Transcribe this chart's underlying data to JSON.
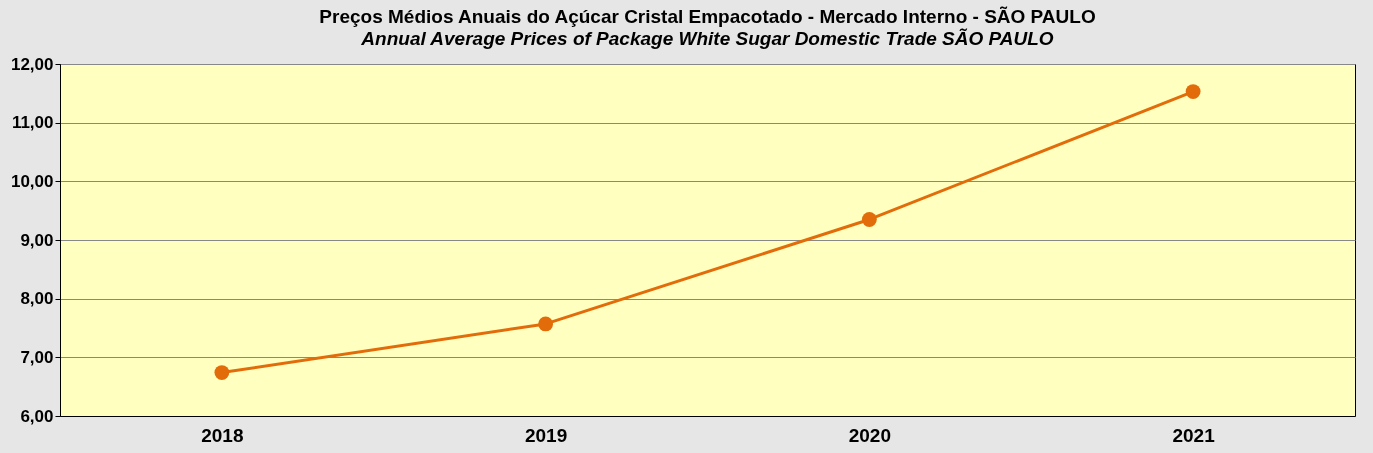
{
  "chart_data": {
    "type": "line",
    "title": "Preços Médios Anuais do Açúcar Cristal Empacotado - Mercado Interno - SÃO PAULO",
    "subtitle": "Annual Average Prices of Package White Sugar  Domestic Trade  SÃO PAULO",
    "categories": [
      "2018",
      "2019",
      "2020",
      "2021"
    ],
    "series": [
      {
        "color": "#e36c0a",
        "values": [
          6.74,
          7.57,
          9.35,
          11.53
        ]
      }
    ],
    "ylim": [
      6,
      12
    ],
    "yticks": [
      {
        "value": 6,
        "label": "6,00"
      },
      {
        "value": 7,
        "label": "7,00"
      },
      {
        "value": 8,
        "label": "8,00"
      },
      {
        "value": 9,
        "label": "9,00"
      },
      {
        "value": 10,
        "label": "10,00"
      },
      {
        "value": 11,
        "label": "11,00"
      },
      {
        "value": 12,
        "label": "12,00"
      }
    ],
    "grid": "y",
    "marker": "circle",
    "line_style": "solid"
  }
}
